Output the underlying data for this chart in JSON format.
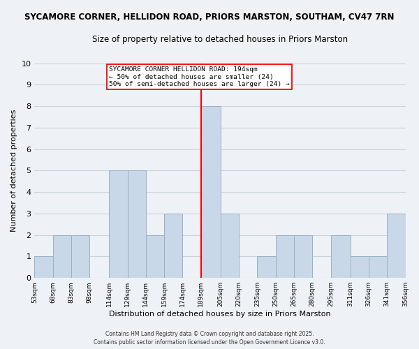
{
  "title": "SYCAMORE CORNER, HELLIDON ROAD, PRIORS MARSTON, SOUTHAM, CV47 7RN",
  "subtitle": "Size of property relative to detached houses in Priors Marston",
  "xlabel": "Distribution of detached houses by size in Priors Marston",
  "ylabel": "Number of detached properties",
  "bins": [
    "53sqm",
    "68sqm",
    "83sqm",
    "98sqm",
    "114sqm",
    "129sqm",
    "144sqm",
    "159sqm",
    "174sqm",
    "189sqm",
    "205sqm",
    "220sqm",
    "235sqm",
    "250sqm",
    "265sqm",
    "280sqm",
    "295sqm",
    "311sqm",
    "326sqm",
    "341sqm",
    "356sqm"
  ],
  "bin_edges": [
    53,
    68,
    83,
    98,
    114,
    129,
    144,
    159,
    174,
    189,
    205,
    220,
    235,
    250,
    265,
    280,
    295,
    311,
    326,
    341,
    356
  ],
  "counts": [
    1,
    2,
    2,
    0,
    5,
    5,
    2,
    3,
    0,
    8,
    3,
    0,
    1,
    2,
    2,
    0,
    2,
    1,
    1,
    3
  ],
  "bar_color": "#c8d8e8",
  "bar_edge_color": "#9ab0c4",
  "median_line_x": 189,
  "median_label": "SYCAMORE CORNER HELLIDON ROAD: 194sqm",
  "annotation_line1": "← 50% of detached houses are smaller (24)",
  "annotation_line2": "50% of semi-detached houses are larger (24) →",
  "median_line_color": "red",
  "grid_color": "#c8d4dc",
  "background_color": "#eef2f6",
  "ylim": [
    0,
    10
  ],
  "yticks": [
    0,
    1,
    2,
    3,
    4,
    5,
    6,
    7,
    8,
    9,
    10
  ],
  "footnote1": "Contains HM Land Registry data © Crown copyright and database right 2025.",
  "footnote2": "Contains public sector information licensed under the Open Government Licence v3.0."
}
